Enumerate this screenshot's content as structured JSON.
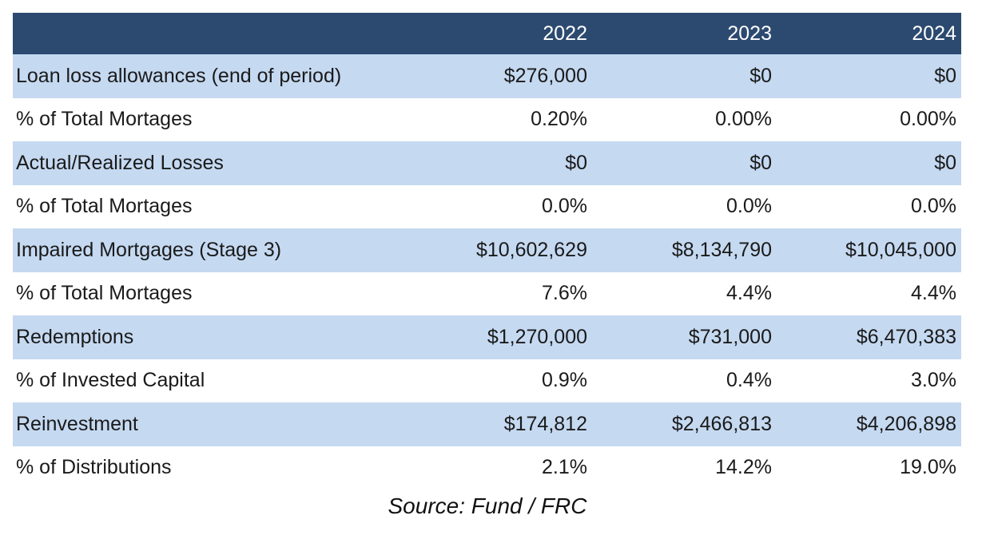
{
  "table": {
    "header": {
      "label": "",
      "years": [
        "2022",
        "2023",
        "2024"
      ]
    },
    "rows": [
      {
        "label": "Loan loss allowances (end of period)",
        "values": [
          "$276,000",
          "$0",
          "$0"
        ],
        "shaded": true
      },
      {
        "label": "% of Total Mortages",
        "values": [
          "0.20%",
          "0.00%",
          "0.00%"
        ],
        "shaded": false
      },
      {
        "label": "Actual/Realized Losses",
        "values": [
          "$0",
          "$0",
          "$0"
        ],
        "shaded": true
      },
      {
        "label": "% of Total Mortages",
        "values": [
          "0.0%",
          "0.0%",
          "0.0%"
        ],
        "shaded": false
      },
      {
        "label": "Impaired Mortgages (Stage 3)",
        "values": [
          "$10,602,629",
          "$8,134,790",
          "$10,045,000"
        ],
        "shaded": true
      },
      {
        "label": "% of Total Mortages",
        "values": [
          "7.6%",
          "4.4%",
          "4.4%"
        ],
        "shaded": false
      },
      {
        "label": "Redemptions",
        "values": [
          "$1,270,000",
          "$731,000",
          "$6,470,383"
        ],
        "shaded": true
      },
      {
        "label": "% of Invested Capital",
        "values": [
          "0.9%",
          "0.4%",
          "3.0%"
        ],
        "shaded": false
      },
      {
        "label": "Reinvestment",
        "values": [
          "$174,812",
          "$2,466,813",
          "$4,206,898"
        ],
        "shaded": true
      },
      {
        "label": "% of Distributions",
        "values": [
          "2.1%",
          "14.2%",
          "19.0%"
        ],
        "shaded": false
      }
    ]
  },
  "source": "Source: Fund / FRC",
  "colors": {
    "header_bg": "#2c4a70",
    "header_text": "#ffffff",
    "shaded_row_bg": "#c5d9f1",
    "plain_row_bg": "#ffffff"
  }
}
